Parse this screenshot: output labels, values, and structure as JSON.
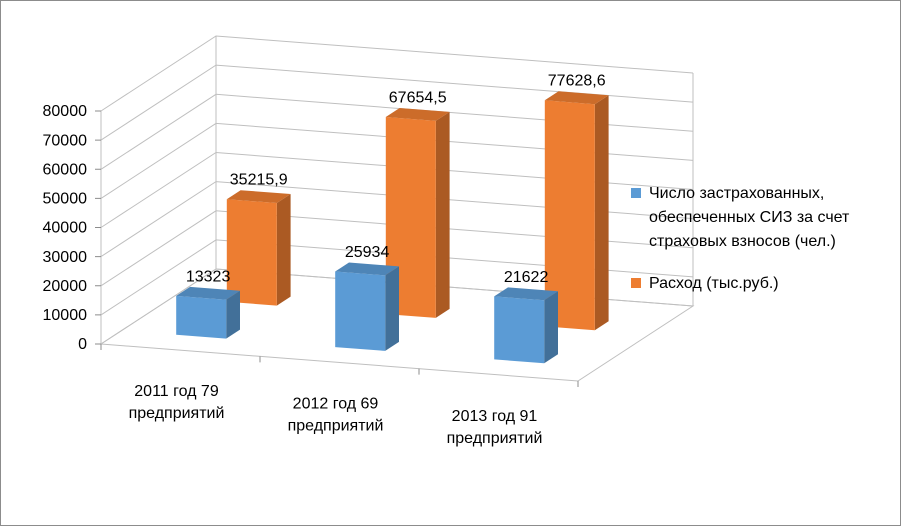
{
  "chart_data": {
    "type": "bar",
    "style": "3d-clustered-column",
    "categories": [
      [
        "2011 год 79",
        "предприятий"
      ],
      [
        "2012 год 69",
        "предприятий"
      ],
      [
        "2013 год 91",
        "предприятий"
      ]
    ],
    "series": [
      {
        "name": [
          "Число застрахованных,",
          "обеспеченных СИЗ за счет",
          "страховых взносов (чел.)"
        ],
        "values": [
          13323,
          25934,
          21622
        ],
        "labels": [
          "13323",
          "25934",
          "21622"
        ],
        "color": "#5b9bd5"
      },
      {
        "name": [
          "Расход (тыс.руб.)"
        ],
        "values": [
          35215.9,
          67654.5,
          77628.6
        ],
        "labels": [
          "35215,9",
          "67654,5",
          "77628,6"
        ],
        "color": "#ed7d31"
      }
    ],
    "ylim": [
      0,
      80000
    ],
    "yticks": [
      "0",
      "10000",
      "20000",
      "30000",
      "40000",
      "50000",
      "60000",
      "70000",
      "80000"
    ],
    "grid": true,
    "legend": "right"
  }
}
